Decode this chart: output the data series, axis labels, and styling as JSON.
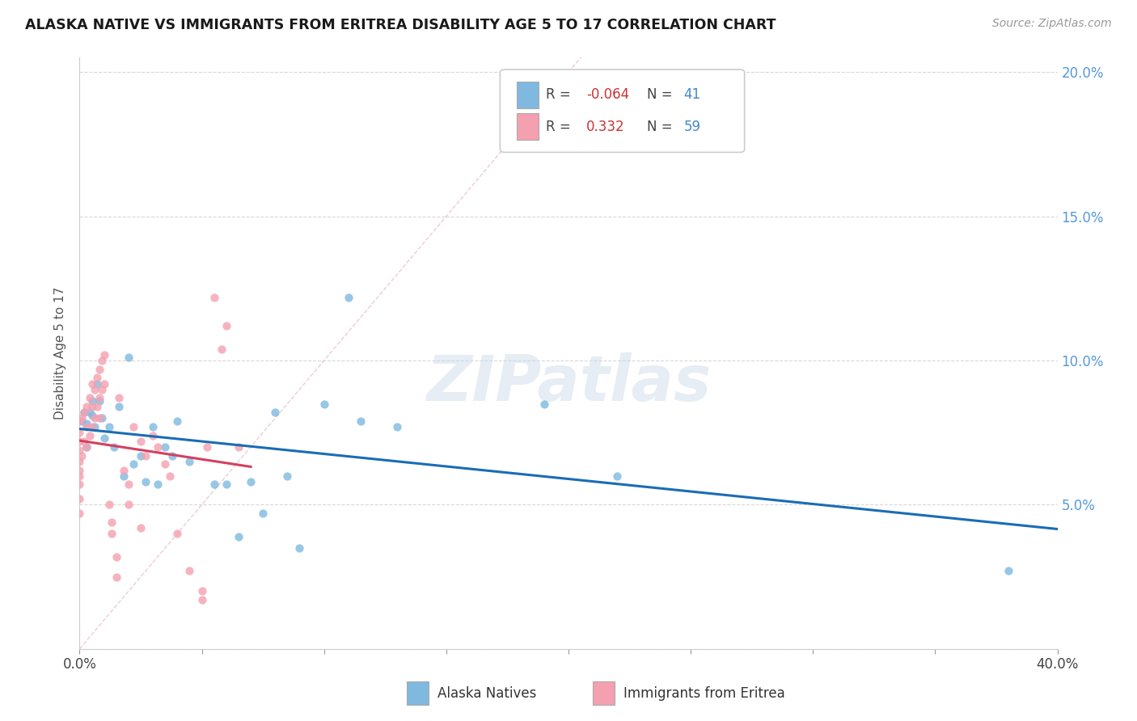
{
  "title": "ALASKA NATIVE VS IMMIGRANTS FROM ERITREA DISABILITY AGE 5 TO 17 CORRELATION CHART",
  "source": "Source: ZipAtlas.com",
  "ylabel": "Disability Age 5 to 17",
  "xmin": 0.0,
  "xmax": 0.4,
  "ymin": 0.0,
  "ymax": 0.205,
  "color_blue": "#7fb9e0",
  "color_pink": "#f4a0b0",
  "color_trendline_blue": "#1a6cb5",
  "color_trendline_pink": "#d44060",
  "color_diag": "#e0b0b8",
  "watermark": "ZIPatlas",
  "r1": "-0.064",
  "n1": "41",
  "r2": "0.332",
  "n2": "59",
  "alaska_x": [
    0.001,
    0.002,
    0.003,
    0.003,
    0.004,
    0.005,
    0.005,
    0.006,
    0.007,
    0.008,
    0.009,
    0.01,
    0.012,
    0.014,
    0.016,
    0.018,
    0.02,
    0.022,
    0.025,
    0.027,
    0.03,
    0.032,
    0.035,
    0.038,
    0.04,
    0.045,
    0.055,
    0.06,
    0.065,
    0.07,
    0.075,
    0.08,
    0.085,
    0.09,
    0.1,
    0.11,
    0.115,
    0.13,
    0.19,
    0.22,
    0.38
  ],
  "alaska_y": [
    0.079,
    0.082,
    0.078,
    0.07,
    0.082,
    0.086,
    0.081,
    0.077,
    0.092,
    0.086,
    0.08,
    0.073,
    0.077,
    0.07,
    0.084,
    0.06,
    0.101,
    0.064,
    0.067,
    0.058,
    0.077,
    0.057,
    0.07,
    0.067,
    0.079,
    0.065,
    0.057,
    0.057,
    0.039,
    0.058,
    0.047,
    0.082,
    0.06,
    0.035,
    0.085,
    0.122,
    0.079,
    0.077,
    0.085,
    0.06,
    0.027
  ],
  "eritrea_x": [
    0.0,
    0.0,
    0.0,
    0.0,
    0.0,
    0.0,
    0.0,
    0.0,
    0.0,
    0.0,
    0.001,
    0.001,
    0.002,
    0.002,
    0.003,
    0.003,
    0.003,
    0.004,
    0.004,
    0.005,
    0.005,
    0.005,
    0.006,
    0.006,
    0.007,
    0.007,
    0.008,
    0.008,
    0.008,
    0.009,
    0.009,
    0.01,
    0.01,
    0.012,
    0.013,
    0.013,
    0.015,
    0.015,
    0.016,
    0.018,
    0.02,
    0.02,
    0.022,
    0.025,
    0.025,
    0.027,
    0.03,
    0.032,
    0.035,
    0.037,
    0.04,
    0.045,
    0.05,
    0.05,
    0.052,
    0.055,
    0.058,
    0.06,
    0.065
  ],
  "eritrea_y": [
    0.079,
    0.075,
    0.072,
    0.069,
    0.065,
    0.062,
    0.06,
    0.057,
    0.052,
    0.047,
    0.08,
    0.067,
    0.082,
    0.072,
    0.084,
    0.077,
    0.07,
    0.087,
    0.074,
    0.092,
    0.084,
    0.077,
    0.09,
    0.08,
    0.094,
    0.084,
    0.097,
    0.087,
    0.08,
    0.1,
    0.09,
    0.102,
    0.092,
    0.05,
    0.044,
    0.04,
    0.032,
    0.025,
    0.087,
    0.062,
    0.057,
    0.05,
    0.077,
    0.072,
    0.042,
    0.067,
    0.074,
    0.07,
    0.064,
    0.06,
    0.04,
    0.027,
    0.02,
    0.017,
    0.07,
    0.122,
    0.104,
    0.112,
    0.07
  ]
}
